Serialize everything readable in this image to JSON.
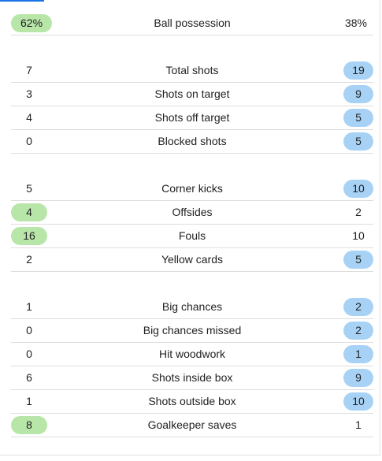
{
  "colors": {
    "home_highlight": "#b8e6a8",
    "away_highlight": "#a8d2f5",
    "divider": "#dddddd"
  },
  "groups": [
    [
      {
        "label": "Ball possession",
        "home": "62%",
        "away": "38%",
        "leader": "home"
      }
    ],
    [
      {
        "label": "Total shots",
        "home": "7",
        "away": "19",
        "leader": "away"
      },
      {
        "label": "Shots on target",
        "home": "3",
        "away": "9",
        "leader": "away"
      },
      {
        "label": "Shots off target",
        "home": "4",
        "away": "5",
        "leader": "away"
      },
      {
        "label": "Blocked shots",
        "home": "0",
        "away": "5",
        "leader": "away"
      }
    ],
    [
      {
        "label": "Corner kicks",
        "home": "5",
        "away": "10",
        "leader": "away"
      },
      {
        "label": "Offsides",
        "home": "4",
        "away": "2",
        "leader": "home"
      },
      {
        "label": "Fouls",
        "home": "16",
        "away": "10",
        "leader": "home"
      },
      {
        "label": "Yellow cards",
        "home": "2",
        "away": "5",
        "leader": "away"
      }
    ],
    [
      {
        "label": "Big chances",
        "home": "1",
        "away": "2",
        "leader": "away"
      },
      {
        "label": "Big chances missed",
        "home": "0",
        "away": "2",
        "leader": "away"
      },
      {
        "label": "Hit woodwork",
        "home": "0",
        "away": "1",
        "leader": "away"
      },
      {
        "label": "Shots inside box",
        "home": "6",
        "away": "9",
        "leader": "away"
      },
      {
        "label": "Shots outside box",
        "home": "1",
        "away": "10",
        "leader": "away"
      },
      {
        "label": "Goalkeeper saves",
        "home": "8",
        "away": "1",
        "leader": "home"
      }
    ]
  ]
}
